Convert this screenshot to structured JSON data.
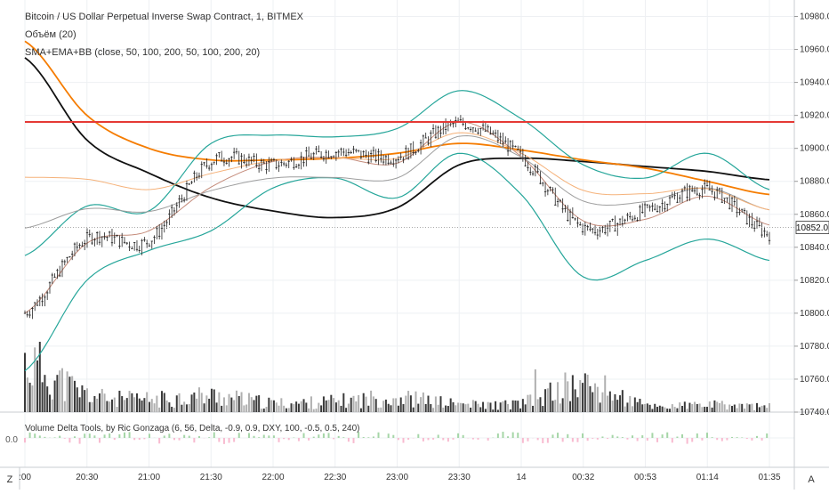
{
  "header": {
    "symbol_title": "Bitcoin / US Dollar Perpetual Inverse Swap Contract, 1, BITMEX",
    "volume_indicator": "Объём (20)",
    "ma_indicator": "SMA+EMA+BB (close, 50, 100, 200, 50, 100, 200, 20)"
  },
  "lower_pane": {
    "indicator_label": "Volume Delta Tools, by Ric Gonzaga (6, 56, Delta, -0.9, 0.9, DXY, 100, -0.5, 0.5, 240)",
    "zero_label": "0.0"
  },
  "price_axis": {
    "labels": [
      "10980.0",
      "10960.0",
      "10940.0",
      "10920.0",
      "10900.0",
      "10880.0",
      "10860.0",
      "10840.0",
      "10820.0",
      "10800.0",
      "10780.0",
      "10760.0",
      "10740.0"
    ],
    "current_price": "10852.0"
  },
  "time_axis": {
    "labels": [
      ":00",
      "20:30",
      "21:00",
      "21:30",
      "22:00",
      "22:30",
      "23:00",
      "23:30",
      "14",
      "00:32",
      "00:53",
      "01:14",
      "01:35"
    ]
  },
  "footer": {
    "left_button": "Z",
    "right_button": "A"
  },
  "colors": {
    "accent_red": "#e53935",
    "bb": "#26a69a",
    "sma200": "#111111",
    "ema200": "#f57c00",
    "delta_pos": "#a5d6a7",
    "delta_neg": "#f8bbd0"
  },
  "chart_data": {
    "type": "line",
    "title": "Bitcoin / US Dollar Perpetual Inverse Swap Contract, 1, BITMEX",
    "x": [
      ":00",
      "20:30",
      "21:00",
      "21:30",
      "22:00",
      "22:30",
      "23:00",
      "23:30",
      "14",
      "00:32",
      "00:53",
      "01:14",
      "01:35"
    ],
    "ylim": [
      10740,
      10990
    ],
    "horizontal_line": 10916,
    "last_price": 10852,
    "series": [
      {
        "key": "price",
        "values": [
          10800,
          10845,
          10844,
          10892,
          10890,
          10898,
          10895,
          10915,
          10895,
          10852,
          10862,
          10875,
          10848
        ]
      },
      {
        "key": "sma200",
        "values": [
          10955,
          10905,
          10885,
          10870,
          10862,
          10858,
          10864,
          10890,
          10894,
          10892,
          10889,
          10886,
          10881
        ]
      },
      {
        "key": "ema200",
        "values": [
          10965,
          10920,
          10900,
          10893,
          10893,
          10894,
          10897,
          10903,
          10899,
          10893,
          10888,
          10880,
          10872
        ]
      },
      {
        "key": "bb_upper",
        "values": [
          10835,
          10865,
          10862,
          10903,
          10908,
          10907,
          10912,
          10935,
          10918,
          10890,
          10882,
          10897,
          10875
        ]
      },
      {
        "key": "bb_lower",
        "values": [
          10765,
          10820,
          10838,
          10850,
          10876,
          10882,
          10870,
          10897,
          10872,
          10822,
          10832,
          10845,
          10832
        ]
      }
    ],
    "volume": [
      55,
      20,
      14,
      18,
      10,
      12,
      16,
      9,
      10,
      30,
      8,
      8,
      6
    ],
    "grid": true,
    "legend": "top-left"
  }
}
